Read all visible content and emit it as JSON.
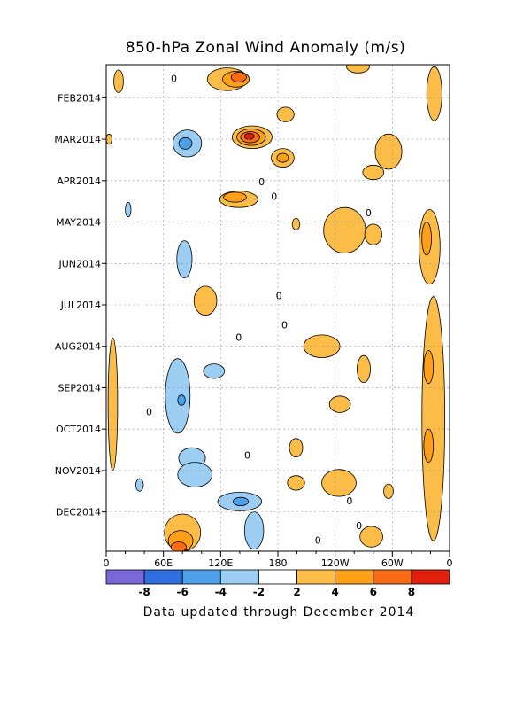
{
  "chart_data": {
    "type": "heatmap",
    "title": "850-hPa Zonal Wind Anomaly (m/s)",
    "footer": "Data updated through December 2014",
    "units": "m/s",
    "xlabel": "",
    "ylabel": "",
    "x_ticks": [
      "0",
      "60E",
      "120E",
      "180",
      "120W",
      "60W",
      "0"
    ],
    "x_range_deg": [
      0,
      360
    ],
    "y_ticks": [
      "FEB2014",
      "MAR2014",
      "APR2014",
      "MAY2014",
      "JUN2014",
      "JUL2014",
      "AUG2014",
      "SEP2014",
      "OCT2014",
      "NOV2014",
      "DEC2014"
    ],
    "y_tick_months": [
      1,
      2,
      3,
      4,
      5,
      6,
      7,
      8,
      9,
      10,
      11
    ],
    "y_range_months": [
      0.2,
      11.95
    ],
    "contour_labels": [
      {
        "text": "0",
        "lon": 71,
        "month": 0.55
      },
      {
        "text": "0",
        "lon": 163,
        "month": 3.05
      },
      {
        "text": "0",
        "lon": 176,
        "month": 3.4
      },
      {
        "text": "0",
        "lon": 275,
        "month": 3.8
      },
      {
        "text": "0",
        "lon": 181,
        "month": 5.8
      },
      {
        "text": "0",
        "lon": 187,
        "month": 6.5
      },
      {
        "text": "0",
        "lon": 139,
        "month": 6.8
      },
      {
        "text": "0",
        "lon": 45,
        "month": 8.6
      },
      {
        "text": "0",
        "lon": 148,
        "month": 9.65
      },
      {
        "text": "0",
        "lon": 255,
        "month": 10.75
      },
      {
        "text": "0",
        "lon": 265,
        "month": 11.35
      },
      {
        "text": "0",
        "lon": 222,
        "month": 11.7
      }
    ],
    "colorbar": {
      "levels": [
        -8,
        -6,
        -4,
        -2,
        2,
        4,
        6,
        8
      ],
      "labels": [
        "-8",
        "-6",
        "-4",
        "-2",
        "2",
        "4",
        "6",
        "8"
      ],
      "colors": [
        "#7a68d8",
        "#2f6fe0",
        "#4fa0ea",
        "#9ccdf2",
        "#ffffff",
        "#fbbd48",
        "#fda018",
        "#f96a14",
        "#e11f0a"
      ]
    },
    "anomalies": [
      {
        "sign": "pos",
        "lon": 13,
        "month": 0.6,
        "w": 10,
        "h": 0.55,
        "level": 1
      },
      {
        "sign": "pos",
        "lon": 3,
        "month": 2.0,
        "w": 6,
        "h": 0.25,
        "level": 1
      },
      {
        "sign": "pos",
        "lon": 127,
        "month": 0.55,
        "w": 42,
        "h": 0.55,
        "level": 1
      },
      {
        "sign": "pos",
        "lon": 136,
        "month": 0.55,
        "w": 28,
        "h": 0.38,
        "level": 2
      },
      {
        "sign": "pos",
        "lon": 139,
        "month": 0.5,
        "w": 16,
        "h": 0.24,
        "level": 3
      },
      {
        "sign": "pos",
        "lon": 153,
        "month": 1.95,
        "w": 42,
        "h": 0.55,
        "level": 1
      },
      {
        "sign": "pos",
        "lon": 152,
        "month": 1.95,
        "w": 30,
        "h": 0.4,
        "level": 2
      },
      {
        "sign": "pos",
        "lon": 151,
        "month": 1.95,
        "w": 20,
        "h": 0.27,
        "level": 3
      },
      {
        "sign": "pos",
        "lon": 150,
        "month": 1.93,
        "w": 10,
        "h": 0.15,
        "level": 4
      },
      {
        "sign": "pos",
        "lon": 188,
        "month": 1.4,
        "w": 18,
        "h": 0.35,
        "level": 1
      },
      {
        "sign": "pos",
        "lon": 185,
        "month": 2.45,
        "w": 24,
        "h": 0.45,
        "level": 1
      },
      {
        "sign": "pos",
        "lon": 185,
        "month": 2.45,
        "w": 12,
        "h": 0.22,
        "level": 2
      },
      {
        "sign": "pos",
        "lon": 139,
        "month": 3.45,
        "w": 40,
        "h": 0.4,
        "level": 1
      },
      {
        "sign": "pos",
        "lon": 135,
        "month": 3.4,
        "w": 24,
        "h": 0.24,
        "level": 2
      },
      {
        "sign": "pos",
        "lon": 264,
        "month": 0.25,
        "w": 24,
        "h": 0.3,
        "level": 1
      },
      {
        "sign": "pos",
        "lon": 296,
        "month": 2.3,
        "w": 28,
        "h": 0.85,
        "level": 1
      },
      {
        "sign": "pos",
        "lon": 280,
        "month": 2.8,
        "w": 22,
        "h": 0.35,
        "level": 1
      },
      {
        "sign": "pos",
        "lon": 250,
        "month": 4.2,
        "w": 44,
        "h": 1.1,
        "level": 1
      },
      {
        "sign": "pos",
        "lon": 280,
        "month": 4.3,
        "w": 18,
        "h": 0.5,
        "level": 1
      },
      {
        "sign": "pos",
        "lon": 199,
        "month": 4.05,
        "w": 8,
        "h": 0.28,
        "level": 1
      },
      {
        "sign": "pos",
        "lon": 344,
        "month": 0.9,
        "w": 16,
        "h": 1.3,
        "level": 1
      },
      {
        "sign": "pos",
        "lon": 339,
        "month": 4.6,
        "w": 22,
        "h": 1.8,
        "level": 1
      },
      {
        "sign": "pos",
        "lon": 336,
        "month": 4.4,
        "w": 10,
        "h": 0.8,
        "level": 2
      },
      {
        "sign": "pos",
        "lon": 104,
        "month": 5.9,
        "w": 24,
        "h": 0.7,
        "level": 1
      },
      {
        "sign": "pos",
        "lon": 226,
        "month": 7.0,
        "w": 38,
        "h": 0.55,
        "level": 1
      },
      {
        "sign": "pos",
        "lon": 270,
        "month": 7.55,
        "w": 14,
        "h": 0.65,
        "level": 1
      },
      {
        "sign": "pos",
        "lon": 245,
        "month": 8.4,
        "w": 22,
        "h": 0.4,
        "level": 1
      },
      {
        "sign": "pos",
        "lon": 343,
        "month": 8.75,
        "w": 24,
        "h": 5.9,
        "level": 1
      },
      {
        "sign": "pos",
        "lon": 338,
        "month": 7.5,
        "w": 10,
        "h": 0.8,
        "level": 2
      },
      {
        "sign": "pos",
        "lon": 338,
        "month": 9.4,
        "w": 10,
        "h": 0.8,
        "level": 2
      },
      {
        "sign": "pos",
        "lon": 7,
        "month": 8.4,
        "w": 10,
        "h": 3.2,
        "level": 1
      },
      {
        "sign": "pos",
        "lon": 199,
        "month": 9.45,
        "w": 14,
        "h": 0.45,
        "level": 1
      },
      {
        "sign": "pos",
        "lon": 244,
        "month": 10.3,
        "w": 36,
        "h": 0.65,
        "level": 1
      },
      {
        "sign": "pos",
        "lon": 199,
        "month": 10.3,
        "w": 18,
        "h": 0.35,
        "level": 1
      },
      {
        "sign": "pos",
        "lon": 278,
        "month": 11.6,
        "w": 24,
        "h": 0.5,
        "level": 1
      },
      {
        "sign": "pos",
        "lon": 296,
        "month": 10.5,
        "w": 10,
        "h": 0.35,
        "level": 1
      },
      {
        "sign": "pos",
        "lon": 80,
        "month": 11.5,
        "w": 38,
        "h": 0.9,
        "level": 1
      },
      {
        "sign": "pos",
        "lon": 78,
        "month": 11.7,
        "w": 26,
        "h": 0.5,
        "level": 2
      },
      {
        "sign": "pos",
        "lon": 76,
        "month": 11.85,
        "w": 16,
        "h": 0.25,
        "level": 3
      },
      {
        "sign": "neg",
        "lon": 85,
        "month": 2.1,
        "w": 30,
        "h": 0.65,
        "level": 1
      },
      {
        "sign": "neg",
        "lon": 83,
        "month": 2.1,
        "w": 14,
        "h": 0.28,
        "level": 2
      },
      {
        "sign": "neg",
        "lon": 82,
        "month": 4.9,
        "w": 16,
        "h": 0.9,
        "level": 1
      },
      {
        "sign": "neg",
        "lon": 23,
        "month": 3.7,
        "w": 6,
        "h": 0.35,
        "level": 1
      },
      {
        "sign": "neg",
        "lon": 75,
        "month": 8.2,
        "w": 26,
        "h": 1.8,
        "level": 1
      },
      {
        "sign": "neg",
        "lon": 79,
        "month": 8.3,
        "w": 8,
        "h": 0.25,
        "level": 2
      },
      {
        "sign": "neg",
        "lon": 113,
        "month": 7.6,
        "w": 22,
        "h": 0.35,
        "level": 1
      },
      {
        "sign": "neg",
        "lon": 90,
        "month": 9.7,
        "w": 28,
        "h": 0.5,
        "level": 1
      },
      {
        "sign": "neg",
        "lon": 93,
        "month": 10.1,
        "w": 36,
        "h": 0.6,
        "level": 1
      },
      {
        "sign": "neg",
        "lon": 140,
        "month": 10.75,
        "w": 46,
        "h": 0.45,
        "level": 1
      },
      {
        "sign": "neg",
        "lon": 141,
        "month": 10.75,
        "w": 16,
        "h": 0.2,
        "level": 2
      },
      {
        "sign": "neg",
        "lon": 155,
        "month": 11.45,
        "w": 20,
        "h": 0.9,
        "level": 1
      },
      {
        "sign": "neg",
        "lon": 35,
        "month": 10.35,
        "w": 8,
        "h": 0.3,
        "level": 1
      }
    ]
  }
}
